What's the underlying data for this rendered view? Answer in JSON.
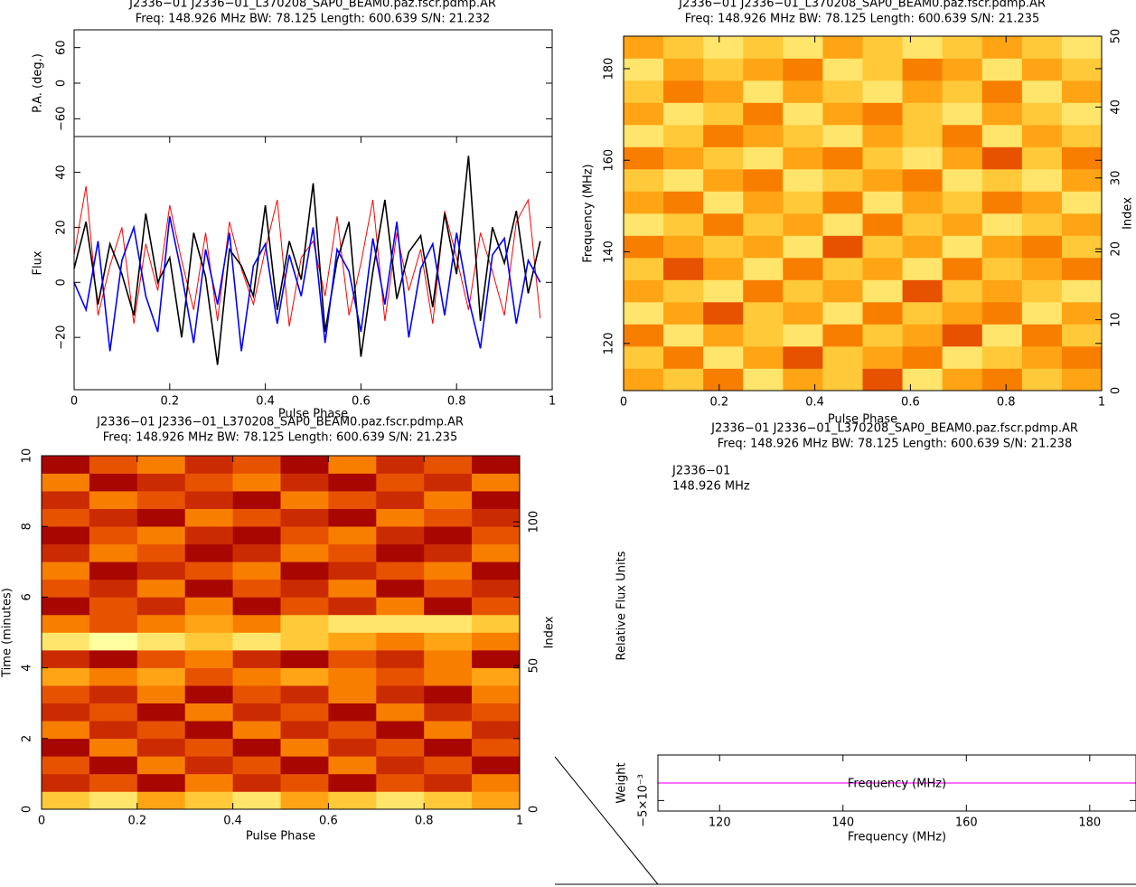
{
  "chart_data": [
    {
      "type": "line",
      "title": "J2336−01 J2336−01_L370208_SAP0_BEAM0.paz.fscr.pdmp.AR",
      "subtitle": "Freq: 148.926 MHz BW: 78.125 Length: 600.639 S/N: 21.232",
      "xlabel": "Pulse Phase",
      "ylabel": "Flux",
      "xlim": [
        0,
        1
      ],
      "xticks": [
        0,
        0.2,
        0.4,
        0.6,
        0.8,
        1
      ],
      "ylim": [
        -39,
        53
      ],
      "yticks": [
        {
          "value": -20,
          "label": "−20"
        },
        0,
        20,
        40
      ],
      "pa_ylabel": "P.A. (deg.)",
      "pa_ylim": [
        -90,
        90
      ],
      "pa_yticks": [
        {
          "value": -60,
          "label": "−60"
        },
        0,
        60
      ],
      "x": [
        0,
        0.025,
        0.05,
        0.075,
        0.1,
        0.125,
        0.15,
        0.175,
        0.2,
        0.225,
        0.25,
        0.275,
        0.3,
        0.325,
        0.35,
        0.375,
        0.4,
        0.425,
        0.45,
        0.475,
        0.5,
        0.525,
        0.55,
        0.575,
        0.6,
        0.625,
        0.65,
        0.675,
        0.7,
        0.725,
        0.75,
        0.775,
        0.8,
        0.825,
        0.85,
        0.875,
        0.9,
        0.925,
        0.95,
        0.975
      ],
      "series": [
        {
          "color": "#ff0000",
          "values": [
            10,
            35,
            -12,
            6,
            20,
            -15,
            14,
            -3,
            28,
            8,
            -10,
            18,
            -14,
            22,
            5,
            -8,
            12,
            30,
            -16,
            9,
            15,
            -5,
            24,
            -12,
            7,
            30,
            -14,
            18,
            -3,
            12,
            -15,
            26,
            9,
            -10,
            18,
            4,
            -12,
            22,
            30,
            -13
          ]
        },
        {
          "color": "#000000",
          "values": [
            5,
            22,
            -8,
            14,
            3,
            -12,
            25,
            0,
            9,
            -20,
            18,
            2,
            -30,
            12,
            6,
            -5,
            28,
            -10,
            15,
            1,
            36,
            -18,
            8,
            22,
            -27,
            4,
            30,
            -6,
            11,
            17,
            -9,
            25,
            3,
            46,
            -14,
            20,
            7,
            26,
            -4,
            15
          ]
        },
        {
          "color": "#0000ff",
          "values": [
            0,
            -10,
            15,
            -25,
            8,
            20,
            -5,
            -18,
            24,
            3,
            -22,
            12,
            -8,
            18,
            -25,
            6,
            14,
            -15,
            10,
            -5,
            20,
            -22,
            12,
            4,
            -18,
            16,
            -8,
            22,
            -20,
            5,
            14,
            -12,
            18,
            -6,
            -24,
            10,
            16,
            -15,
            8,
            0
          ]
        }
      ]
    },
    {
      "type": "heatmap",
      "title": "J2336−01 J2336−01_L370208_SAP0_BEAM0.paz.fscr.pdmp.AR",
      "subtitle": "Freq: 148.926 MHz BW: 78.125 Length: 600.639 S/N: 21.235",
      "xlabel": "Pulse Phase",
      "ylabel": "Frequency (MHz)",
      "y2label": "Index",
      "xlim": [
        0,
        1
      ],
      "xticks": [
        0,
        0.2,
        0.4,
        0.6,
        0.8,
        1
      ],
      "ylim": [
        109.7,
        187.1
      ],
      "yticks": [
        120,
        140,
        160,
        180
      ],
      "y2lim": [
        0,
        50
      ],
      "y2ticks": [
        0,
        10,
        20,
        30,
        40,
        50
      ],
      "zlim": [
        0,
        9
      ],
      "colormap": [
        "#3a0000",
        "#a00000",
        "#e04000",
        "#ff9000",
        "#ffd040",
        "#ffffa0"
      ],
      "z": [
        [
          6,
          7,
          5,
          8,
          6,
          7,
          4,
          8,
          6,
          5,
          7,
          6
        ],
        [
          7,
          5,
          8,
          6,
          4,
          7,
          6,
          5,
          8,
          7,
          6,
          5
        ],
        [
          5,
          8,
          6,
          7,
          8,
          5,
          7,
          6,
          4,
          8,
          5,
          7
        ],
        [
          8,
          6,
          4,
          7,
          6,
          8,
          5,
          7,
          6,
          5,
          8,
          6
        ],
        [
          6,
          7,
          8,
          5,
          7,
          6,
          8,
          4,
          7,
          6,
          7,
          8
        ],
        [
          7,
          4,
          6,
          8,
          5,
          7,
          6,
          8,
          5,
          7,
          6,
          5
        ],
        [
          5,
          6,
          7,
          6,
          8,
          4,
          7,
          6,
          8,
          6,
          5,
          7
        ],
        [
          8,
          7,
          5,
          7,
          6,
          8,
          5,
          7,
          6,
          8,
          7,
          6
        ],
        [
          6,
          5,
          8,
          6,
          7,
          5,
          8,
          6,
          7,
          5,
          6,
          8
        ],
        [
          7,
          8,
          6,
          5,
          8,
          7,
          6,
          5,
          8,
          7,
          8,
          6
        ],
        [
          5,
          6,
          7,
          8,
          6,
          5,
          7,
          8,
          6,
          4,
          7,
          5
        ],
        [
          8,
          7,
          5,
          6,
          7,
          8,
          6,
          7,
          5,
          8,
          6,
          7
        ],
        [
          6,
          8,
          7,
          5,
          8,
          6,
          5,
          7,
          8,
          6,
          7,
          8
        ],
        [
          7,
          5,
          6,
          8,
          6,
          7,
          8,
          6,
          7,
          5,
          8,
          6
        ],
        [
          8,
          6,
          7,
          6,
          5,
          8,
          7,
          5,
          6,
          8,
          6,
          7
        ],
        [
          6,
          7,
          8,
          7,
          8,
          6,
          7,
          8,
          7,
          6,
          7,
          8
        ]
      ]
    },
    {
      "type": "heatmap",
      "title": "J2336−01 J2336−01_L370208_SAP0_BEAM0.paz.fscr.pdmp.AR",
      "subtitle": "Freq: 148.926 MHz BW: 78.125 Length: 600.639 S/N: 21.235",
      "xlabel": "Pulse Phase",
      "ylabel": "Time (minutes)",
      "y2label": "Index",
      "xlim": [
        0,
        1
      ],
      "xticks": [
        0,
        0.2,
        0.4,
        0.6,
        0.8,
        1
      ],
      "ylim": [
        0,
        10
      ],
      "yticks": [
        0,
        2,
        4,
        6,
        8,
        10
      ],
      "y2lim": [
        0,
        123
      ],
      "y2ticks": [
        0,
        50,
        100
      ],
      "zlim": [
        0,
        9
      ],
      "colormap": [
        "#3a0000",
        "#a00000",
        "#e04000",
        "#ff9000",
        "#ffd040",
        "#ffffa0"
      ],
      "z": [
        [
          7,
          8,
          6,
          7,
          8,
          6,
          7,
          8,
          7,
          6
        ],
        [
          3,
          4,
          2,
          5,
          3,
          4,
          2,
          4,
          3,
          5
        ],
        [
          4,
          2,
          5,
          3,
          4,
          2,
          5,
          3,
          4,
          2
        ],
        [
          2,
          5,
          3,
          4,
          2,
          5,
          3,
          4,
          2,
          4
        ],
        [
          5,
          3,
          4,
          2,
          5,
          3,
          4,
          2,
          5,
          3
        ],
        [
          3,
          4,
          2,
          5,
          3,
          4,
          2,
          5,
          3,
          4
        ],
        [
          4,
          3,
          5,
          2,
          4,
          3,
          5,
          3,
          2,
          5
        ],
        [
          6,
          5,
          6,
          4,
          5,
          6,
          5,
          4,
          5,
          6
        ],
        [
          3,
          2,
          4,
          5,
          3,
          2,
          4,
          3,
          5,
          2
        ],
        [
          8,
          9,
          8,
          7,
          8,
          7,
          6,
          5,
          6,
          5
        ],
        [
          5,
          4,
          5,
          6,
          5,
          7,
          8,
          8,
          8,
          7
        ],
        [
          2,
          4,
          3,
          5,
          2,
          4,
          3,
          5,
          2,
          4
        ],
        [
          4,
          3,
          5,
          2,
          4,
          3,
          5,
          2,
          4,
          3
        ],
        [
          5,
          2,
          3,
          4,
          5,
          2,
          3,
          4,
          5,
          2
        ],
        [
          3,
          5,
          4,
          2,
          3,
          5,
          4,
          2,
          3,
          5
        ],
        [
          2,
          4,
          5,
          3,
          2,
          4,
          5,
          3,
          2,
          4
        ],
        [
          4,
          3,
          2,
          5,
          4,
          3,
          2,
          5,
          4,
          3
        ],
        [
          3,
          5,
          4,
          3,
          2,
          5,
          4,
          3,
          5,
          2
        ],
        [
          5,
          2,
          3,
          4,
          5,
          3,
          2,
          4,
          3,
          5
        ],
        [
          2,
          4,
          5,
          3,
          4,
          2,
          5,
          3,
          4,
          2
        ]
      ]
    },
    {
      "type": "line",
      "title": "J2336−01 J2336−01_L370208_SAP0_BEAM0.paz.fscr.pdmp.AR",
      "subtitle": "Freq: 148.926 MHz BW: 78.125 Length: 600.639 S/N: 21.238",
      "annotations": [
        "J2336−01",
        "148.926 MHz"
      ],
      "flux_ylabel": "Relative Flux Units",
      "xlabel": "Frequency (MHz)",
      "inner_label": "Frequency (MHz)",
      "ylabel": "Weight",
      "xlim": [
        110,
        187.5
      ],
      "xticks": [
        120,
        140,
        160,
        180
      ],
      "ylim": [
        -0.008,
        0.008
      ],
      "yticks": [
        {
          "value": -0.005,
          "label": "−5×10⁻³"
        }
      ],
      "x": [
        110,
        187.5
      ],
      "series": [
        {
          "color": "#ff44ff",
          "values": [
            0,
            0
          ]
        }
      ]
    }
  ]
}
